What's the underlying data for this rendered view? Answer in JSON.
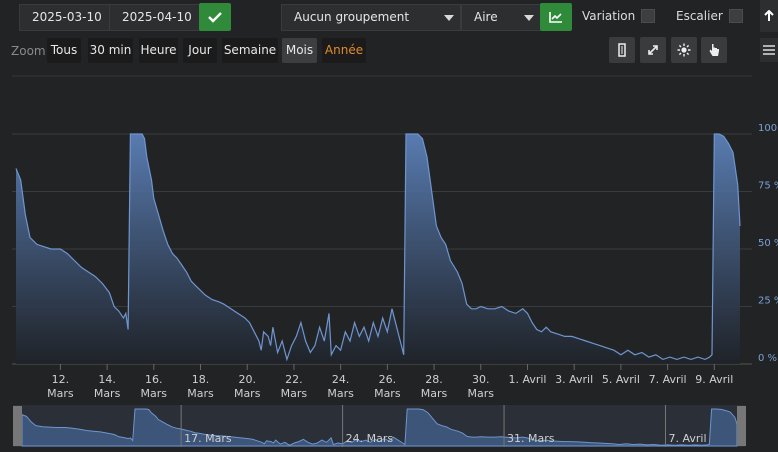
{
  "date_range": {
    "start": "2025-03-10",
    "end": "2025-04-10"
  },
  "toolbar": {
    "grouping": "Aucun groupement",
    "chart_type": "Aire",
    "variation_label": "Variation",
    "escalier_label": "Escalier"
  },
  "zoom": {
    "label": "Zoom",
    "buttons": [
      "Tous",
      "30 min",
      "Heure",
      "Jour",
      "Semaine",
      "Mois",
      "Année"
    ],
    "active": "Mois"
  },
  "icons": [
    "sidebar-icon",
    "compress-icon",
    "sun-icon",
    "hand-pointer-icon",
    "arrow-up-icon",
    "menu-icon"
  ],
  "colors": {
    "area_top": "#5b80b8",
    "line": "#6f95cf",
    "ok_button": "#2f8a3a",
    "annee": "#e08a2c"
  },
  "chart_data": {
    "type": "area",
    "x_ticks": [
      {
        "day": 12,
        "line1": "12.",
        "line2": "Mars"
      },
      {
        "day": 14,
        "line1": "14.",
        "line2": "Mars"
      },
      {
        "day": 16,
        "line1": "16.",
        "line2": "Mars"
      },
      {
        "day": 18,
        "line1": "18.",
        "line2": "Mars"
      },
      {
        "day": 20,
        "line1": "20.",
        "line2": "Mars"
      },
      {
        "day": 22,
        "line1": "22.",
        "line2": "Mars"
      },
      {
        "day": 24,
        "line1": "24.",
        "line2": "Mars"
      },
      {
        "day": 26,
        "line1": "26.",
        "line2": "Mars"
      },
      {
        "day": 28,
        "line1": "28.",
        "line2": "Mars"
      },
      {
        "day": 30,
        "line1": "30.",
        "line2": "Mars"
      },
      {
        "day": 32,
        "line1": "1. Avril",
        "line2": ""
      },
      {
        "day": 34,
        "line1": "3. Avril",
        "line2": ""
      },
      {
        "day": 36,
        "line1": "5. Avril",
        "line2": ""
      },
      {
        "day": 38,
        "line1": "7. Avril",
        "line2": ""
      },
      {
        "day": 40,
        "line1": "9. Avril",
        "line2": ""
      }
    ],
    "y_ticks": [
      {
        "v": 0,
        "label": "0 %"
      },
      {
        "v": 25,
        "label": "25 %"
      },
      {
        "v": 50,
        "label": "50 %"
      },
      {
        "v": 75,
        "label": "75 %"
      },
      {
        "v": 100,
        "label": "100 %"
      }
    ],
    "ylim": [
      0,
      100
    ],
    "xlim_days": [
      10.1,
      41.1
    ],
    "points": [
      [
        10.1,
        85
      ],
      [
        10.3,
        80
      ],
      [
        10.5,
        65
      ],
      [
        10.7,
        55
      ],
      [
        11.0,
        52
      ],
      [
        11.3,
        51
      ],
      [
        11.6,
        50
      ],
      [
        12.0,
        50
      ],
      [
        12.3,
        48
      ],
      [
        12.6,
        45
      ],
      [
        12.9,
        42
      ],
      [
        13.2,
        40
      ],
      [
        13.5,
        38
      ],
      [
        13.8,
        35
      ],
      [
        14.1,
        31
      ],
      [
        14.3,
        25
      ],
      [
        14.5,
        23
      ],
      [
        14.7,
        20
      ],
      [
        14.8,
        22
      ],
      [
        14.9,
        15
      ],
      [
        15.0,
        100
      ],
      [
        15.1,
        100
      ],
      [
        15.3,
        100
      ],
      [
        15.5,
        100
      ],
      [
        15.6,
        98
      ],
      [
        15.7,
        90
      ],
      [
        15.9,
        80
      ],
      [
        16.0,
        72
      ],
      [
        16.2,
        65
      ],
      [
        16.4,
        58
      ],
      [
        16.6,
        52
      ],
      [
        16.8,
        48
      ],
      [
        17.0,
        46
      ],
      [
        17.2,
        43
      ],
      [
        17.4,
        40
      ],
      [
        17.6,
        36
      ],
      [
        17.8,
        34
      ],
      [
        18.0,
        32
      ],
      [
        18.2,
        30
      ],
      [
        18.5,
        28
      ],
      [
        18.8,
        27
      ],
      [
        19.0,
        26
      ],
      [
        19.3,
        24
      ],
      [
        19.6,
        22
      ],
      [
        19.9,
        20
      ],
      [
        20.1,
        18
      ],
      [
        20.3,
        14
      ],
      [
        20.5,
        10
      ],
      [
        20.6,
        6
      ],
      [
        20.7,
        14
      ],
      [
        20.9,
        12
      ],
      [
        21.0,
        8
      ],
      [
        21.1,
        16
      ],
      [
        21.3,
        5
      ],
      [
        21.5,
        10
      ],
      [
        21.7,
        2
      ],
      [
        21.9,
        8
      ],
      [
        22.1,
        12
      ],
      [
        22.3,
        18
      ],
      [
        22.5,
        10
      ],
      [
        22.7,
        5
      ],
      [
        22.9,
        8
      ],
      [
        23.1,
        16
      ],
      [
        23.3,
        10
      ],
      [
        23.5,
        22
      ],
      [
        23.6,
        4
      ],
      [
        23.8,
        8
      ],
      [
        24.0,
        6
      ],
      [
        24.2,
        14
      ],
      [
        24.4,
        10
      ],
      [
        24.6,
        18
      ],
      [
        24.8,
        12
      ],
      [
        25.0,
        16
      ],
      [
        25.2,
        10
      ],
      [
        25.4,
        18
      ],
      [
        25.6,
        12
      ],
      [
        25.8,
        20
      ],
      [
        26.0,
        14
      ],
      [
        26.2,
        24
      ],
      [
        26.4,
        16
      ],
      [
        26.6,
        8
      ],
      [
        26.7,
        4
      ],
      [
        26.8,
        100
      ],
      [
        27.0,
        100
      ],
      [
        27.3,
        100
      ],
      [
        27.5,
        98
      ],
      [
        27.7,
        90
      ],
      [
        27.9,
        75
      ],
      [
        28.1,
        60
      ],
      [
        28.3,
        55
      ],
      [
        28.5,
        52
      ],
      [
        28.7,
        45
      ],
      [
        29.0,
        40
      ],
      [
        29.2,
        35
      ],
      [
        29.4,
        26
      ],
      [
        29.6,
        24
      ],
      [
        29.8,
        24
      ],
      [
        30.0,
        25
      ],
      [
        30.3,
        24
      ],
      [
        30.6,
        24
      ],
      [
        30.9,
        25
      ],
      [
        31.2,
        23
      ],
      [
        31.5,
        22
      ],
      [
        31.8,
        24
      ],
      [
        32.0,
        22
      ],
      [
        32.2,
        18
      ],
      [
        32.4,
        15
      ],
      [
        32.6,
        14
      ],
      [
        32.8,
        16
      ],
      [
        33.0,
        14
      ],
      [
        33.3,
        13
      ],
      [
        33.6,
        12
      ],
      [
        33.9,
        12
      ],
      [
        34.2,
        11
      ],
      [
        34.5,
        10
      ],
      [
        34.8,
        9
      ],
      [
        35.1,
        8
      ],
      [
        35.4,
        7
      ],
      [
        35.7,
        6
      ],
      [
        36.0,
        4
      ],
      [
        36.3,
        6
      ],
      [
        36.6,
        4
      ],
      [
        36.9,
        5
      ],
      [
        37.2,
        3
      ],
      [
        37.5,
        4
      ],
      [
        37.8,
        2
      ],
      [
        38.1,
        3
      ],
      [
        38.4,
        2
      ],
      [
        38.7,
        3
      ],
      [
        39.0,
        2
      ],
      [
        39.3,
        3
      ],
      [
        39.6,
        2
      ],
      [
        39.8,
        3
      ],
      [
        39.9,
        4
      ],
      [
        40.0,
        100
      ],
      [
        40.2,
        100
      ],
      [
        40.4,
        99
      ],
      [
        40.6,
        96
      ],
      [
        40.8,
        92
      ],
      [
        41.0,
        78
      ],
      [
        41.1,
        60
      ]
    ]
  },
  "navigator": {
    "labels": [
      {
        "day": 17,
        "text": "17. Mars"
      },
      {
        "day": 24,
        "text": "24. Mars"
      },
      {
        "day": 31,
        "text": "31. Mars"
      },
      {
        "day": 38,
        "text": "7. Avril"
      }
    ]
  }
}
